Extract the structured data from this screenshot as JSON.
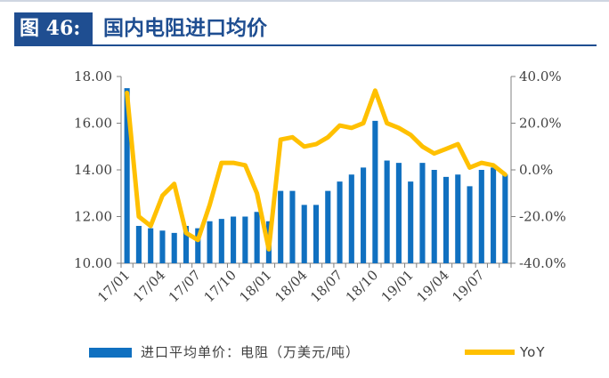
{
  "figure": {
    "label": "图 46:",
    "title": "国内电阻进口均价"
  },
  "chart_data": {
    "type": "bar",
    "title": "国内电阻进口均价",
    "x": [
      "17/01",
      "17/02",
      "17/03",
      "17/04",
      "17/05",
      "17/06",
      "17/07",
      "17/08",
      "17/09",
      "17/10",
      "17/11",
      "17/12",
      "18/01",
      "18/02",
      "18/03",
      "18/04",
      "18/05",
      "18/06",
      "18/07",
      "18/08",
      "18/09",
      "18/10",
      "18/11",
      "18/12",
      "19/01",
      "19/02",
      "19/03",
      "19/04",
      "19/05",
      "19/06",
      "19/07",
      "19/08",
      "19/09"
    ],
    "x_tick_labels": [
      "17/01",
      "17/04",
      "17/07",
      "17/10",
      "18/01",
      "18/04",
      "18/07",
      "18/10",
      "19/01",
      "19/04",
      "19/07"
    ],
    "series": [
      {
        "name": "进口平均单价：电阻（万美元/吨）",
        "type": "bar",
        "axis": "left",
        "color": "#1070c0",
        "values": [
          17.5,
          11.6,
          11.5,
          11.4,
          11.3,
          11.6,
          11.5,
          11.8,
          11.9,
          12.0,
          12.0,
          12.2,
          11.8,
          13.1,
          13.1,
          12.5,
          12.5,
          13.1,
          13.5,
          13.8,
          14.1,
          16.1,
          14.4,
          14.3,
          13.5,
          14.3,
          14.0,
          13.7,
          13.8,
          13.3,
          14.0,
          14.1,
          13.8
        ]
      },
      {
        "name": "YoY",
        "type": "line",
        "axis": "right",
        "color": "#ffc000",
        "values": [
          33,
          -20,
          -24,
          -11,
          -6,
          -27,
          -30,
          -15,
          3,
          3,
          2,
          -10,
          -34,
          13,
          14,
          10,
          11,
          14,
          19,
          18,
          20,
          34,
          20,
          18,
          15,
          10,
          7,
          9,
          11,
          1,
          3,
          2,
          -2
        ]
      }
    ],
    "y_left": {
      "ylim": [
        10,
        18
      ],
      "ticks": [
        "10.00",
        "12.00",
        "14.00",
        "16.00",
        "18.00"
      ]
    },
    "y_right": {
      "ylim": [
        -40,
        40
      ],
      "ticks": [
        "-40.0%",
        "-20.0%",
        "0.0%",
        "20.0%",
        "40.0%"
      ]
    },
    "grid": false,
    "legend_position": "bottom"
  },
  "legend": {
    "bar_label": "进口平均单价：电阻（万美元/吨）",
    "line_label": "YoY"
  }
}
